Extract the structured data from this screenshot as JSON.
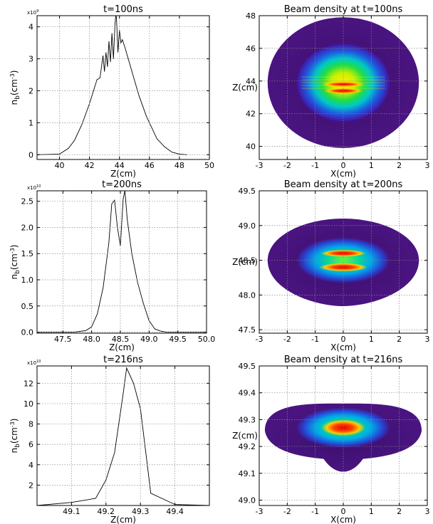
{
  "chart_data": [
    {
      "type": "line",
      "title": "t=100ns",
      "xlabel": "Z(cm)",
      "ylabel": "n_b(cm^-3)",
      "multiplier": "x10^9",
      "xlim": [
        38.5,
        50
      ],
      "ylim": [
        -0.15,
        4.35
      ],
      "xticks": [
        40,
        42,
        44,
        46,
        48,
        50
      ],
      "yticks": [
        0,
        1,
        2,
        3,
        4
      ],
      "grid": true,
      "x": [
        38.5,
        40.0,
        40.6,
        41.0,
        41.5,
        42.0,
        42.5,
        42.7,
        42.9,
        43.0,
        43.1,
        43.2,
        43.3,
        43.4,
        43.5,
        43.6,
        43.7,
        43.75,
        43.8,
        43.9,
        44.0,
        44.1,
        44.2,
        44.4,
        44.8,
        45.3,
        45.8,
        46.5,
        47.0,
        47.5,
        48.0,
        48.5
      ],
      "y": [
        0.0,
        0.02,
        0.2,
        0.45,
        0.95,
        1.6,
        2.35,
        2.4,
        3.1,
        2.6,
        3.2,
        2.75,
        3.55,
        2.9,
        3.8,
        3.0,
        4.05,
        4.35,
        4.3,
        3.2,
        3.9,
        3.5,
        3.6,
        3.3,
        2.65,
        1.85,
        1.2,
        0.5,
        0.25,
        0.08,
        0.02,
        0.0
      ]
    },
    {
      "type": "heatmap",
      "title": "Beam density at t=100ns",
      "xlabel": "X(cm)",
      "ylabel": "Z(cm)",
      "xlim": [
        -3,
        3
      ],
      "ylim": [
        39.2,
        48
      ],
      "xticks": [
        -3,
        -2,
        -1,
        0,
        1,
        2,
        3
      ],
      "yticks": [
        40,
        42,
        44,
        46,
        48
      ],
      "grid": true,
      "center": [
        0,
        43.9
      ],
      "half_width": 2.7,
      "half_height": 4.0,
      "peak_z": [
        43.8,
        43.4
      ]
    },
    {
      "type": "line",
      "title": "t=200ns",
      "xlabel": "Z(cm)",
      "ylabel": "n_b(cm^-3)",
      "multiplier": "x10^10",
      "xlim": [
        47.05,
        50.0
      ],
      "ylim": [
        -0.02,
        2.7
      ],
      "xticks": [
        47.5,
        48.0,
        48.5,
        49.0,
        49.5,
        50.0
      ],
      "yticks": [
        0,
        0.5,
        1.0,
        1.5,
        2.0,
        2.5
      ],
      "grid": true,
      "x": [
        47.05,
        47.7,
        47.9,
        48.0,
        48.1,
        48.2,
        48.3,
        48.35,
        48.4,
        48.45,
        48.5,
        48.55,
        48.58,
        48.62,
        48.7,
        48.8,
        48.9,
        49.0,
        49.1,
        49.2,
        49.3,
        50.0
      ],
      "y": [
        0.0,
        0.0,
        0.03,
        0.1,
        0.35,
        0.85,
        1.7,
        2.45,
        2.52,
        2.0,
        1.65,
        2.55,
        2.7,
        2.15,
        1.5,
        0.95,
        0.55,
        0.22,
        0.06,
        0.02,
        0.0,
        0.0
      ]
    },
    {
      "type": "heatmap",
      "title": "Beam density at t=200ns",
      "xlabel": "X(cm)",
      "ylabel": "Z(cm)",
      "xlim": [
        -3,
        3
      ],
      "ylim": [
        47.45,
        49.5
      ],
      "xticks": [
        -3,
        -2,
        -1,
        0,
        1,
        2,
        3
      ],
      "yticks": [
        47.5,
        48.0,
        48.5,
        49.0,
        49.5
      ],
      "grid": true,
      "center": [
        0,
        48.5
      ],
      "half_width": 2.7,
      "half_height": 0.6,
      "peak_z": [
        48.6,
        48.4
      ]
    },
    {
      "type": "line",
      "title": "t=216ns",
      "xlabel": "Z(cm)",
      "ylabel": "n_b(cm^-3)",
      "multiplier": "x10^10",
      "xlim": [
        49.0,
        49.5
      ],
      "ylim": [
        0,
        13.7
      ],
      "xticks": [
        49.1,
        49.2,
        49.3,
        49.4
      ],
      "yticks": [
        2,
        4,
        6,
        8,
        10,
        12
      ],
      "grid": true,
      "x": [
        49.0,
        49.1,
        49.17,
        49.2,
        49.225,
        49.25,
        49.26,
        49.28,
        49.3,
        49.33,
        49.4,
        49.5
      ],
      "y": [
        0.0,
        0.3,
        0.7,
        2.5,
        5.2,
        11.0,
        13.5,
        12.0,
        9.5,
        1.2,
        0.1,
        0.0
      ]
    },
    {
      "type": "heatmap",
      "title": "Beam density at t=216ns",
      "xlabel": "X(cm)",
      "ylabel": "Z(cm)",
      "xlim": [
        -3,
        3
      ],
      "ylim": [
        48.98,
        49.5
      ],
      "xticks": [
        -3,
        -2,
        -1,
        0,
        1,
        2,
        3
      ],
      "yticks": [
        49.0,
        49.1,
        49.2,
        49.3,
        49.4,
        49.5
      ],
      "grid": true,
      "center": [
        0,
        49.27
      ],
      "half_width": 2.8,
      "half_height": 0.09,
      "peak_z": [
        49.27
      ]
    }
  ]
}
